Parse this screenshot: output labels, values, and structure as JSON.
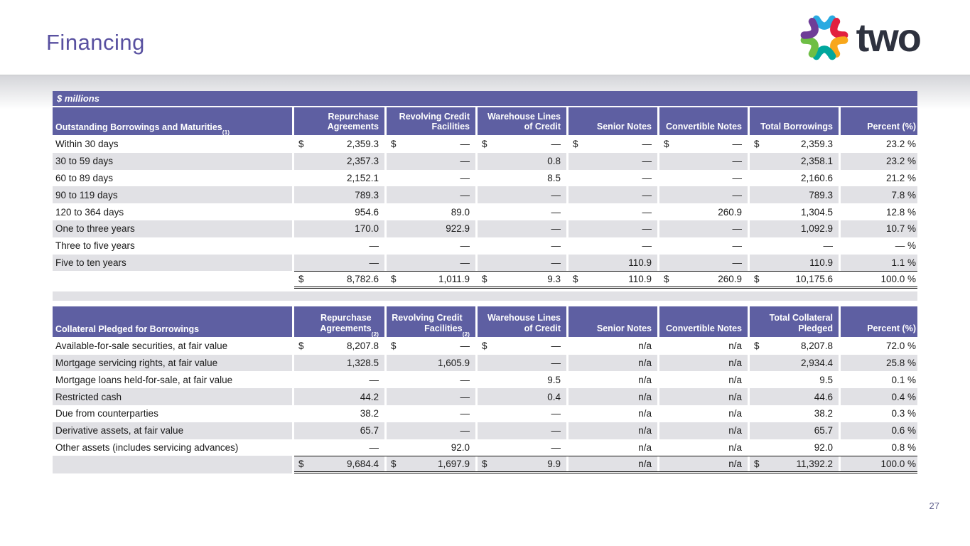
{
  "slide": {
    "title": "Financing",
    "units_label": "$ millions",
    "page_number": "27"
  },
  "logo": {
    "text": "two",
    "segment_colors": [
      "#29aae1",
      "#e2203f",
      "#f8a71b",
      "#00a79d",
      "#6ebe45",
      "#6f3d97"
    ]
  },
  "colors": {
    "header_purple": "#5e5fa2",
    "row_stripe": "#e1e1e5",
    "title_purple": "#5850a0",
    "logo_text": "#2e323f"
  },
  "tables": [
    {
      "title": "Outstanding Borrowings and Maturities",
      "title_sup": "(1)",
      "columns": [
        {
          "label": "Repurchase Agreements",
          "sup": ""
        },
        {
          "label": "Revolving Credit Facilities",
          "sup": ""
        },
        {
          "label": "Warehouse Lines of Credit",
          "sup": ""
        },
        {
          "label": "Senior Notes",
          "sup": ""
        },
        {
          "label": "Convertible Notes",
          "sup": ""
        },
        {
          "label": "Total Borrowings",
          "sup": ""
        },
        {
          "label": "Percent (%)",
          "sup": ""
        }
      ],
      "rows": [
        {
          "label": "Within 30 days",
          "stripe": false,
          "cells": [
            {
              "p": "$",
              "v": "2,359.3"
            },
            {
              "p": "$",
              "v": "—"
            },
            {
              "p": "$",
              "v": "—"
            },
            {
              "p": "$",
              "v": "—"
            },
            {
              "p": "$",
              "v": "—"
            },
            {
              "p": "$",
              "v": "2,359.3"
            },
            {
              "p": "",
              "v": "23.2 %"
            }
          ]
        },
        {
          "label": "30 to 59 days",
          "stripe": true,
          "cells": [
            {
              "p": "",
              "v": "2,357.3"
            },
            {
              "p": "",
              "v": "—"
            },
            {
              "p": "",
              "v": "0.8"
            },
            {
              "p": "",
              "v": "—"
            },
            {
              "p": "",
              "v": "—"
            },
            {
              "p": "",
              "v": "2,358.1"
            },
            {
              "p": "",
              "v": "23.2 %"
            }
          ]
        },
        {
          "label": "60 to 89 days",
          "stripe": false,
          "cells": [
            {
              "p": "",
              "v": "2,152.1"
            },
            {
              "p": "",
              "v": "—"
            },
            {
              "p": "",
              "v": "8.5"
            },
            {
              "p": "",
              "v": "—"
            },
            {
              "p": "",
              "v": "—"
            },
            {
              "p": "",
              "v": "2,160.6"
            },
            {
              "p": "",
              "v": "21.2 %"
            }
          ]
        },
        {
          "label": "90 to 119 days",
          "stripe": true,
          "cells": [
            {
              "p": "",
              "v": "789.3"
            },
            {
              "p": "",
              "v": "—"
            },
            {
              "p": "",
              "v": "—"
            },
            {
              "p": "",
              "v": "—"
            },
            {
              "p": "",
              "v": "—"
            },
            {
              "p": "",
              "v": "789.3"
            },
            {
              "p": "",
              "v": "7.8 %"
            }
          ]
        },
        {
          "label": "120 to 364 days",
          "stripe": false,
          "cells": [
            {
              "p": "",
              "v": "954.6"
            },
            {
              "p": "",
              "v": "89.0"
            },
            {
              "p": "",
              "v": "—"
            },
            {
              "p": "",
              "v": "—"
            },
            {
              "p": "",
              "v": "260.9"
            },
            {
              "p": "",
              "v": "1,304.5"
            },
            {
              "p": "",
              "v": "12.8 %"
            }
          ]
        },
        {
          "label": "One to three years",
          "stripe": true,
          "cells": [
            {
              "p": "",
              "v": "170.0"
            },
            {
              "p": "",
              "v": "922.9"
            },
            {
              "p": "",
              "v": "—"
            },
            {
              "p": "",
              "v": "—"
            },
            {
              "p": "",
              "v": "—"
            },
            {
              "p": "",
              "v": "1,092.9"
            },
            {
              "p": "",
              "v": "10.7 %"
            }
          ]
        },
        {
          "label": "Three to five years",
          "stripe": false,
          "cells": [
            {
              "p": "",
              "v": "—"
            },
            {
              "p": "",
              "v": "—"
            },
            {
              "p": "",
              "v": "—"
            },
            {
              "p": "",
              "v": "—"
            },
            {
              "p": "",
              "v": "—"
            },
            {
              "p": "",
              "v": "—"
            },
            {
              "p": "",
              "v": "— %"
            }
          ]
        },
        {
          "label": "Five to ten years",
          "stripe": true,
          "cells": [
            {
              "p": "",
              "v": "—"
            },
            {
              "p": "",
              "v": "—"
            },
            {
              "p": "",
              "v": "—"
            },
            {
              "p": "",
              "v": "110.9"
            },
            {
              "p": "",
              "v": "—"
            },
            {
              "p": "",
              "v": "110.9"
            },
            {
              "p": "",
              "v": "1.1 %"
            }
          ]
        }
      ],
      "total_row": {
        "label": "",
        "stripe": false,
        "cells": [
          {
            "p": "$",
            "v": "8,782.6"
          },
          {
            "p": "$",
            "v": "1,011.9"
          },
          {
            "p": "$",
            "v": "9.3"
          },
          {
            "p": "$",
            "v": "110.9"
          },
          {
            "p": "$",
            "v": "260.9"
          },
          {
            "p": "$",
            "v": "10,175.6"
          },
          {
            "p": "",
            "v": "100.0 %"
          }
        ]
      }
    },
    {
      "title": "Collateral Pledged for Borrowings",
      "title_sup": "",
      "columns": [
        {
          "label": "Repurchase Agreements",
          "sup": "(2)"
        },
        {
          "label": "Revolving Credit Facilities",
          "sup": "(2)"
        },
        {
          "label": "Warehouse Lines of Credit",
          "sup": ""
        },
        {
          "label": "Senior Notes",
          "sup": ""
        },
        {
          "label": "Convertible Notes",
          "sup": ""
        },
        {
          "label": "Total Collateral Pledged",
          "sup": ""
        },
        {
          "label": "Percent (%)",
          "sup": ""
        }
      ],
      "rows": [
        {
          "label": "Available-for-sale securities, at fair value",
          "stripe": false,
          "cells": [
            {
              "p": "$",
              "v": "8,207.8"
            },
            {
              "p": "$",
              "v": "—"
            },
            {
              "p": "$",
              "v": "—"
            },
            {
              "p": "",
              "v": "n/a"
            },
            {
              "p": "",
              "v": "n/a"
            },
            {
              "p": "$",
              "v": "8,207.8"
            },
            {
              "p": "",
              "v": "72.0 %"
            }
          ]
        },
        {
          "label": "Mortgage servicing rights, at fair value",
          "stripe": true,
          "cells": [
            {
              "p": "",
              "v": "1,328.5"
            },
            {
              "p": "",
              "v": "1,605.9"
            },
            {
              "p": "",
              "v": "—"
            },
            {
              "p": "",
              "v": "n/a"
            },
            {
              "p": "",
              "v": "n/a"
            },
            {
              "p": "",
              "v": "2,934.4"
            },
            {
              "p": "",
              "v": "25.8 %"
            }
          ]
        },
        {
          "label": "Mortgage loans held-for-sale, at fair value",
          "stripe": false,
          "cells": [
            {
              "p": "",
              "v": "—"
            },
            {
              "p": "",
              "v": "—"
            },
            {
              "p": "",
              "v": "9.5"
            },
            {
              "p": "",
              "v": "n/a"
            },
            {
              "p": "",
              "v": "n/a"
            },
            {
              "p": "",
              "v": "9.5"
            },
            {
              "p": "",
              "v": "0.1 %"
            }
          ]
        },
        {
          "label": "Restricted cash",
          "stripe": true,
          "cells": [
            {
              "p": "",
              "v": "44.2"
            },
            {
              "p": "",
              "v": "—"
            },
            {
              "p": "",
              "v": "0.4"
            },
            {
              "p": "",
              "v": "n/a"
            },
            {
              "p": "",
              "v": "n/a"
            },
            {
              "p": "",
              "v": "44.6"
            },
            {
              "p": "",
              "v": "0.4 %"
            }
          ]
        },
        {
          "label": "Due from counterparties",
          "stripe": false,
          "cells": [
            {
              "p": "",
              "v": "38.2"
            },
            {
              "p": "",
              "v": "—"
            },
            {
              "p": "",
              "v": "—"
            },
            {
              "p": "",
              "v": "n/a"
            },
            {
              "p": "",
              "v": "n/a"
            },
            {
              "p": "",
              "v": "38.2"
            },
            {
              "p": "",
              "v": "0.3 %"
            }
          ]
        },
        {
          "label": "Derivative assets, at fair value",
          "stripe": true,
          "cells": [
            {
              "p": "",
              "v": "65.7"
            },
            {
              "p": "",
              "v": "—"
            },
            {
              "p": "",
              "v": "—"
            },
            {
              "p": "",
              "v": "n/a"
            },
            {
              "p": "",
              "v": "n/a"
            },
            {
              "p": "",
              "v": "65.7"
            },
            {
              "p": "",
              "v": "0.6 %"
            }
          ]
        },
        {
          "label": "Other assets (includes servicing advances)",
          "stripe": false,
          "cells": [
            {
              "p": "",
              "v": "—"
            },
            {
              "p": "",
              "v": "92.0"
            },
            {
              "p": "",
              "v": "—"
            },
            {
              "p": "",
              "v": "n/a"
            },
            {
              "p": "",
              "v": "n/a"
            },
            {
              "p": "",
              "v": "92.0"
            },
            {
              "p": "",
              "v": "0.8 %"
            }
          ]
        }
      ],
      "total_row": {
        "label": "",
        "stripe": true,
        "cells": [
          {
            "p": "$",
            "v": "9,684.4"
          },
          {
            "p": "$",
            "v": "1,697.9"
          },
          {
            "p": "$",
            "v": "9.9"
          },
          {
            "p": "",
            "v": "n/a"
          },
          {
            "p": "",
            "v": "n/a"
          },
          {
            "p": "$",
            "v": "11,392.2"
          },
          {
            "p": "",
            "v": "100.0 %"
          }
        ]
      }
    }
  ]
}
